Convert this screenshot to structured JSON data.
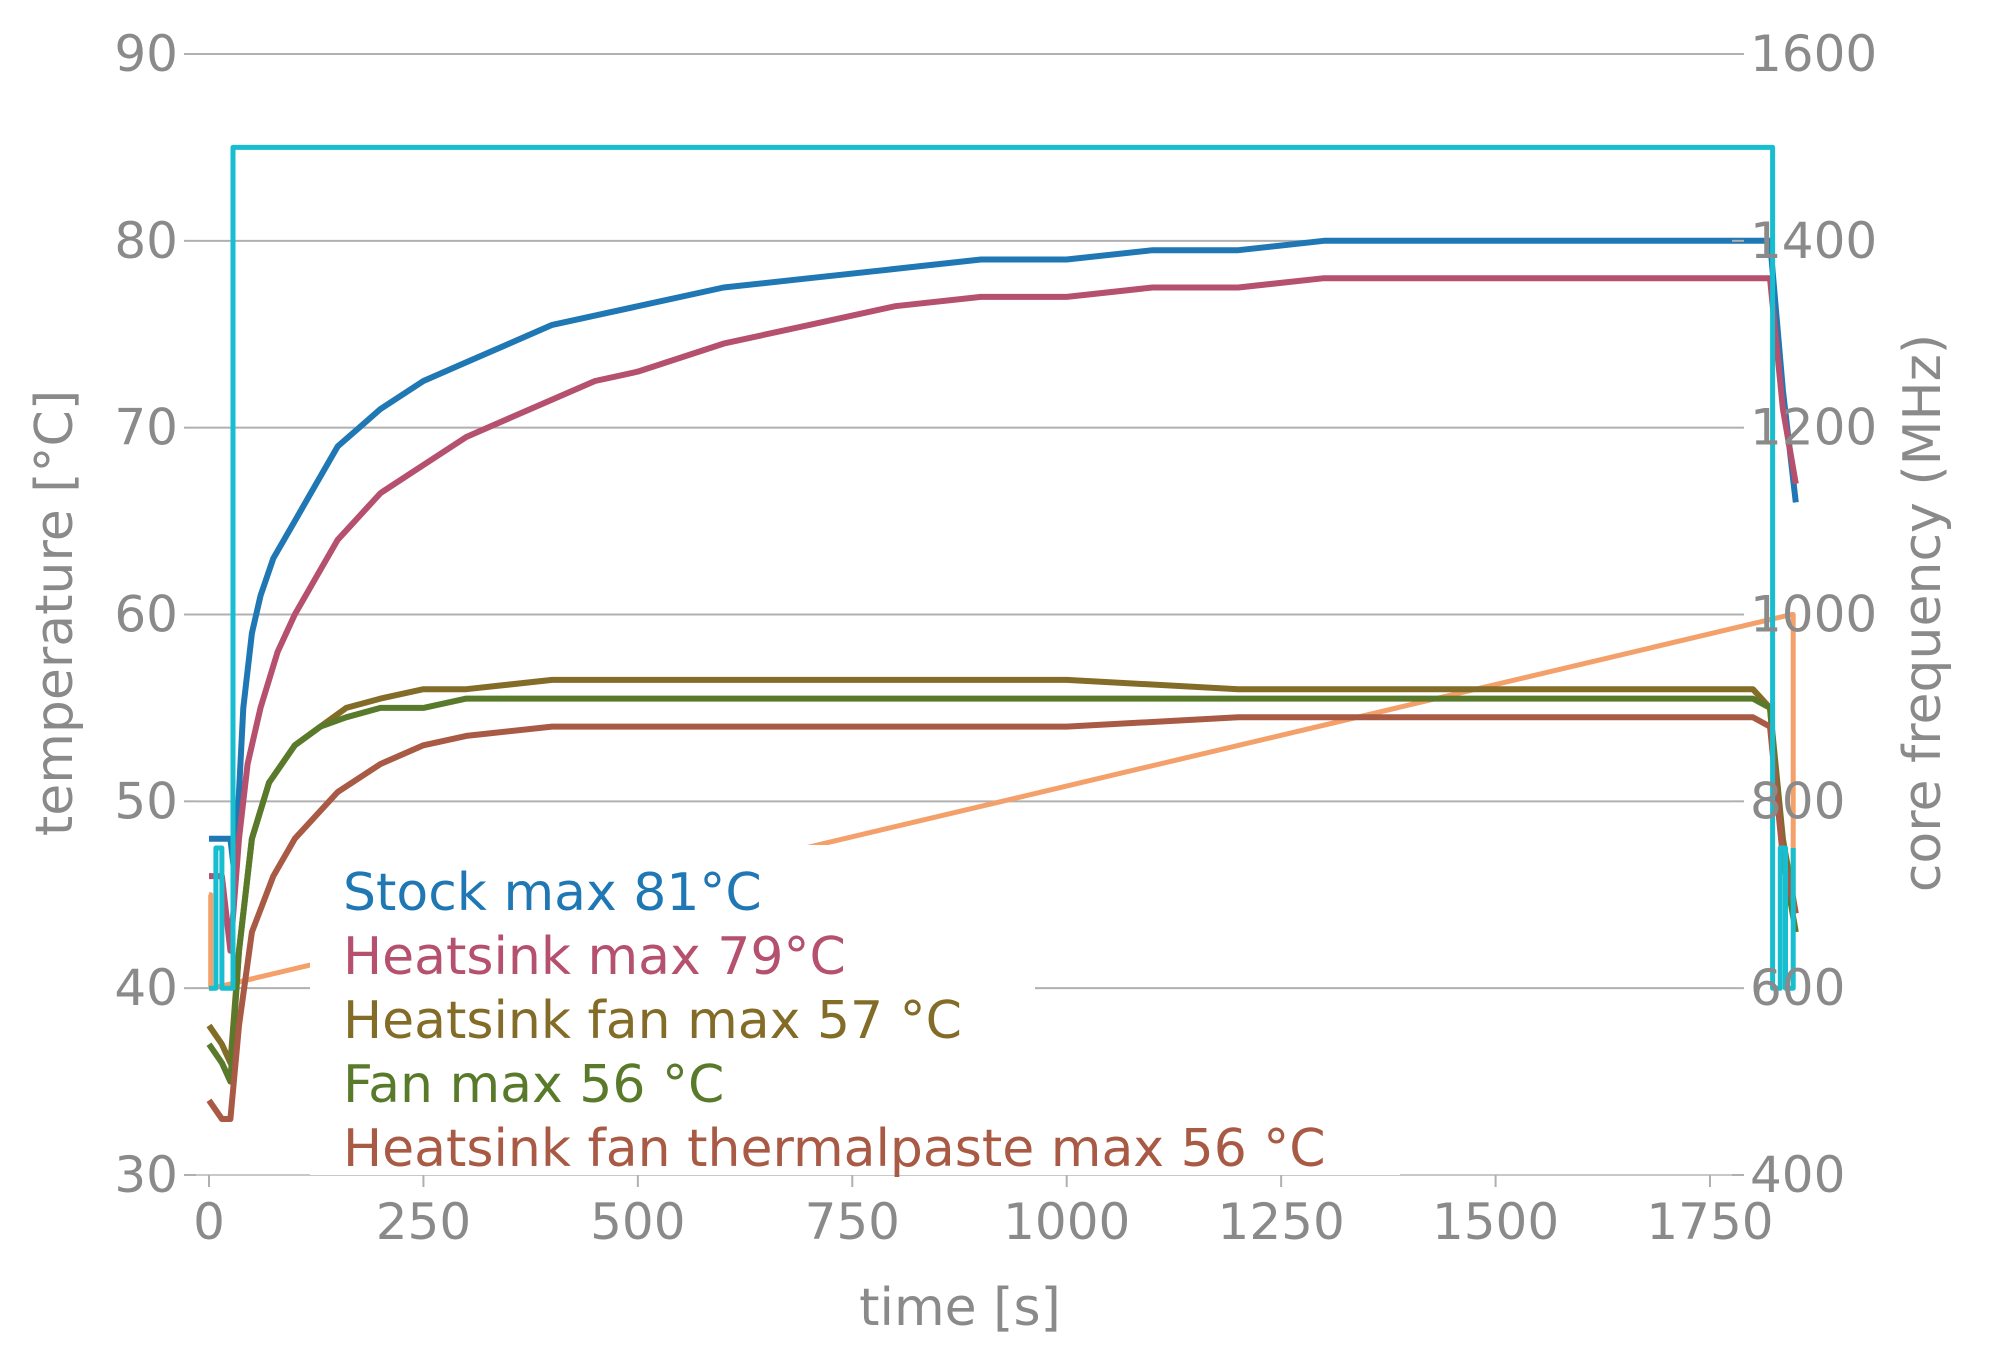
{
  "chart_data": {
    "type": "line",
    "xlabel": "time [s]",
    "ylabel": "temperature [°C]",
    "y2label": "core frequency (MHz)",
    "xlim": [
      0,
      1860
    ],
    "ylim": [
      30,
      90
    ],
    "y2lim": [
      400,
      1600
    ],
    "xticks": [
      0,
      250,
      500,
      750,
      1000,
      1250,
      1500,
      1750
    ],
    "xtick_labels": [
      "0",
      "250",
      "500",
      "750",
      "1000",
      "1250",
      "1500",
      "1750"
    ],
    "yticks": [
      30,
      40,
      50,
      60,
      70,
      80,
      90
    ],
    "ytick_labels": [
      "30",
      "40",
      "50",
      "60",
      "70",
      "80",
      "90"
    ],
    "y2ticks": [
      400,
      600,
      800,
      1000,
      1200,
      1400,
      1600
    ],
    "y2tick_labels": [
      "400",
      "600",
      "800",
      "1000",
      "1200",
      "1400",
      "1600"
    ],
    "grid": "horizontal",
    "legend_placement": "bottom-left",
    "series": [
      {
        "name": "Stock max 81°C",
        "color": "#1f77b4",
        "axis": "left",
        "x": [
          0,
          10,
          25,
          30,
          40,
          50,
          60,
          75,
          100,
          125,
          150,
          175,
          200,
          250,
          300,
          350,
          400,
          450,
          500,
          600,
          700,
          800,
          900,
          1000,
          1100,
          1200,
          1300,
          1400,
          1500,
          1600,
          1700,
          1800,
          1820,
          1835,
          1845,
          1850
        ],
        "y": [
          48,
          48,
          48,
          46,
          55,
          59,
          61,
          63,
          65,
          67,
          69,
          70,
          71,
          72.5,
          73.5,
          74.5,
          75.5,
          76,
          76.5,
          77.5,
          78,
          78.5,
          79,
          79,
          79.5,
          79.5,
          80,
          80,
          80,
          80,
          80,
          80,
          80,
          72,
          68,
          66
        ]
      },
      {
        "name": "Heatsink max 79°C",
        "color": "#b5506e",
        "axis": "left",
        "x": [
          0,
          15,
          25,
          35,
          45,
          60,
          80,
          100,
          125,
          150,
          200,
          250,
          300,
          350,
          400,
          450,
          500,
          600,
          700,
          800,
          900,
          1000,
          1100,
          1200,
          1300,
          1400,
          1500,
          1600,
          1700,
          1800,
          1820,
          1835,
          1850
        ],
        "y": [
          46,
          46,
          42,
          48,
          52,
          55,
          58,
          60,
          62,
          64,
          66.5,
          68,
          69.5,
          70.5,
          71.5,
          72.5,
          73,
          74.5,
          75.5,
          76.5,
          77,
          77,
          77.5,
          77.5,
          78,
          78,
          78,
          78,
          78,
          78,
          78,
          71,
          67
        ]
      },
      {
        "name": "Heatsink fan max 57 °C",
        "color": "#836c27",
        "axis": "left",
        "x": [
          0,
          15,
          25,
          35,
          50,
          70,
          100,
          130,
          160,
          200,
          250,
          300,
          400,
          500,
          600,
          700,
          800,
          900,
          1000,
          1200,
          1400,
          1600,
          1800,
          1820,
          1835,
          1850
        ],
        "y": [
          38,
          37,
          36,
          42,
          48,
          51,
          53,
          54,
          55,
          55.5,
          56,
          56,
          56.5,
          56.5,
          56.5,
          56.5,
          56.5,
          56.5,
          56.5,
          56,
          56,
          56,
          56,
          55,
          48,
          44
        ]
      },
      {
        "name": "Fan max 56 °C",
        "color": "#5a7a2b",
        "axis": "left",
        "x": [
          0,
          15,
          25,
          35,
          50,
          70,
          100,
          130,
          160,
          200,
          250,
          300,
          400,
          500,
          600,
          800,
          1000,
          1200,
          1400,
          1600,
          1800,
          1820,
          1835,
          1850
        ],
        "y": [
          37,
          36,
          35,
          42,
          48,
          51,
          53,
          54,
          54.5,
          55,
          55,
          55.5,
          55.5,
          55.5,
          55.5,
          55.5,
          55.5,
          55.5,
          55.5,
          55.5,
          55.5,
          55,
          47,
          43
        ]
      },
      {
        "name": "Heatsink fan thermalpaste max 56 °C",
        "color": "#a85a45",
        "axis": "left",
        "x": [
          0,
          15,
          25,
          35,
          50,
          75,
          100,
          150,
          200,
          250,
          300,
          400,
          500,
          600,
          700,
          800,
          1000,
          1200,
          1400,
          1600,
          1800,
          1820,
          1835,
          1850
        ],
        "y": [
          34,
          33,
          33,
          38,
          43,
          46,
          48,
          50.5,
          52,
          53,
          53.5,
          54,
          54,
          54,
          54,
          54,
          54,
          54.5,
          54.5,
          54.5,
          54.5,
          54,
          47,
          44
        ]
      },
      {
        "color": "#17becf",
        "axis": "right",
        "x": [
          0,
          8,
          8,
          15,
          15,
          28,
          28,
          1823,
          1823,
          1832,
          1832,
          1838,
          1838,
          1847,
          1847
        ],
        "y": [
          600,
          600,
          750,
          750,
          600,
          600,
          1500,
          1500,
          600,
          600,
          750,
          750,
          600,
          600,
          750
        ]
      },
      {
        "color": "#f4a06a",
        "axis": "right",
        "x": [
          0,
          2,
          2,
          4,
          1845,
          1847,
          1847,
          1849
        ],
        "y": [
          700,
          700,
          600,
          600,
          1000,
          1000,
          700,
          700
        ]
      }
    ]
  }
}
